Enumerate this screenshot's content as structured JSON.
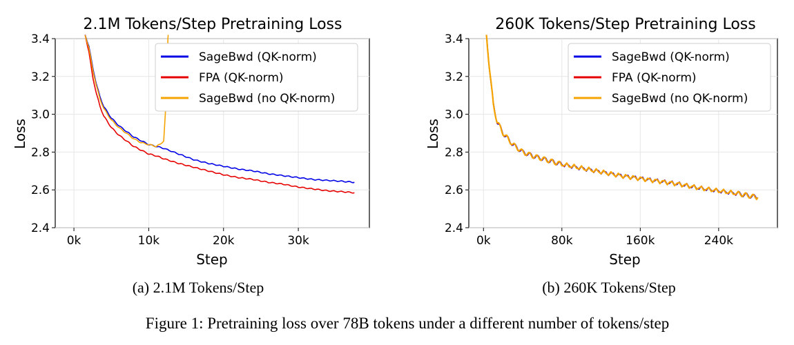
{
  "figure_caption": "Figure 1: Pretraining loss over 78B tokens under a different number of tokens/step",
  "chart_data": [
    {
      "type": "line",
      "title": "2.1M Tokens/Step Pretraining Loss",
      "subcaption": "(a) 2.1M Tokens/Step",
      "xlabel": "Step",
      "ylabel": "Loss",
      "xlim": [
        -2500,
        39500
      ],
      "ylim": [
        2.4,
        3.4
      ],
      "xticks": [
        0,
        10000,
        20000,
        30000
      ],
      "xtick_labels": [
        "0k",
        "10k",
        "20k",
        "30k"
      ],
      "yticks": [
        2.4,
        2.6,
        2.8,
        3.0,
        3.2,
        3.4
      ],
      "ytick_labels": [
        "2.4",
        "2.6",
        "2.8",
        "3.0",
        "3.2",
        "3.4"
      ],
      "grid": true,
      "legend_position": "top-right",
      "series": [
        {
          "name": "SageBwd (QK-norm)",
          "color": "#0000e6",
          "x": [
            1500,
            2000,
            2500,
            3000,
            3500,
            4000,
            5000,
            6000,
            7000,
            8000,
            9000,
            10000,
            11000,
            12000,
            14000,
            16000,
            18000,
            20000,
            22000,
            24000,
            26000,
            28000,
            30000,
            32000,
            34000,
            36000,
            37500
          ],
          "y": [
            3.42,
            3.36,
            3.25,
            3.16,
            3.09,
            3.04,
            2.98,
            2.94,
            2.91,
            2.88,
            2.86,
            2.84,
            2.83,
            2.82,
            2.79,
            2.76,
            2.74,
            2.725,
            2.71,
            2.7,
            2.685,
            2.675,
            2.665,
            2.655,
            2.65,
            2.645,
            2.64
          ]
        },
        {
          "name": "FPA (QK-norm)",
          "color": "#e60000",
          "x": [
            1500,
            2000,
            2500,
            3000,
            3500,
            4000,
            5000,
            6000,
            7000,
            8000,
            9000,
            10000,
            11000,
            12000,
            14000,
            16000,
            18000,
            20000,
            22000,
            24000,
            26000,
            28000,
            30000,
            32000,
            34000,
            36000,
            37500
          ],
          "y": [
            3.42,
            3.33,
            3.2,
            3.11,
            3.04,
            2.99,
            2.93,
            2.89,
            2.86,
            2.83,
            2.81,
            2.79,
            2.78,
            2.765,
            2.74,
            2.72,
            2.7,
            2.68,
            2.665,
            2.655,
            2.64,
            2.63,
            2.615,
            2.605,
            2.595,
            2.59,
            2.585
          ]
        },
        {
          "name": "SageBwd (no QK-norm)",
          "color": "#f5a300",
          "x": [
            1500,
            2000,
            2500,
            3000,
            3500,
            4000,
            5000,
            6000,
            7000,
            8000,
            9000,
            10000,
            10500,
            11000,
            11500,
            12000,
            12300,
            12600
          ],
          "y": [
            3.42,
            3.35,
            3.24,
            3.15,
            3.08,
            3.03,
            2.97,
            2.93,
            2.9,
            2.87,
            2.85,
            2.84,
            2.835,
            2.83,
            2.84,
            2.86,
            3.05,
            3.45
          ]
        }
      ]
    },
    {
      "type": "line",
      "title": "260K Tokens/Step Pretraining Loss",
      "subcaption": "(b) 260K Tokens/Step",
      "xlabel": "Step",
      "ylabel": "Loss",
      "xlim": [
        -15000,
        300000
      ],
      "ylim": [
        2.4,
        3.4
      ],
      "xticks": [
        0,
        80000,
        160000,
        240000
      ],
      "xtick_labels": [
        "0k",
        "80k",
        "160k",
        "240k"
      ],
      "yticks": [
        2.4,
        2.6,
        2.8,
        3.0,
        3.2,
        3.4
      ],
      "ytick_labels": [
        "2.4",
        "2.6",
        "2.8",
        "3.0",
        "3.2",
        "3.4"
      ],
      "grid": true,
      "legend_position": "top-right",
      "series": [
        {
          "name": "SageBwd (QK-norm)",
          "color": "#0000e6",
          "x": [
            3000,
            6000,
            10000,
            14000,
            20000,
            30000,
            40000,
            50000,
            60000,
            70000,
            80000,
            100000,
            120000,
            140000,
            160000,
            180000,
            200000,
            220000,
            240000,
            260000,
            270000,
            280000
          ],
          "y": [
            3.42,
            3.25,
            3.05,
            2.96,
            2.9,
            2.84,
            2.8,
            2.78,
            2.765,
            2.75,
            2.735,
            2.715,
            2.695,
            2.675,
            2.66,
            2.645,
            2.63,
            2.61,
            2.595,
            2.58,
            2.57,
            2.56
          ]
        },
        {
          "name": "FPA (QK-norm)",
          "color": "#e60000",
          "x": [
            3000,
            6000,
            10000,
            14000,
            20000,
            30000,
            40000,
            50000,
            60000,
            70000,
            80000,
            100000,
            120000,
            140000,
            160000,
            180000,
            200000,
            220000,
            240000,
            260000,
            270000,
            280000
          ],
          "y": [
            3.42,
            3.25,
            3.05,
            2.96,
            2.9,
            2.84,
            2.8,
            2.78,
            2.765,
            2.75,
            2.735,
            2.715,
            2.695,
            2.675,
            2.66,
            2.645,
            2.63,
            2.61,
            2.595,
            2.58,
            2.57,
            2.56
          ]
        },
        {
          "name": "SageBwd (no QK-norm)",
          "color": "#f5a300",
          "x": [
            3000,
            6000,
            10000,
            14000,
            20000,
            30000,
            40000,
            50000,
            60000,
            70000,
            80000,
            100000,
            120000,
            140000,
            160000,
            180000,
            200000,
            220000,
            240000,
            260000,
            270000,
            280000
          ],
          "y": [
            3.42,
            3.25,
            3.05,
            2.96,
            2.9,
            2.84,
            2.8,
            2.78,
            2.765,
            2.75,
            2.735,
            2.715,
            2.695,
            2.675,
            2.66,
            2.645,
            2.63,
            2.61,
            2.595,
            2.58,
            2.57,
            2.56
          ]
        }
      ]
    }
  ]
}
